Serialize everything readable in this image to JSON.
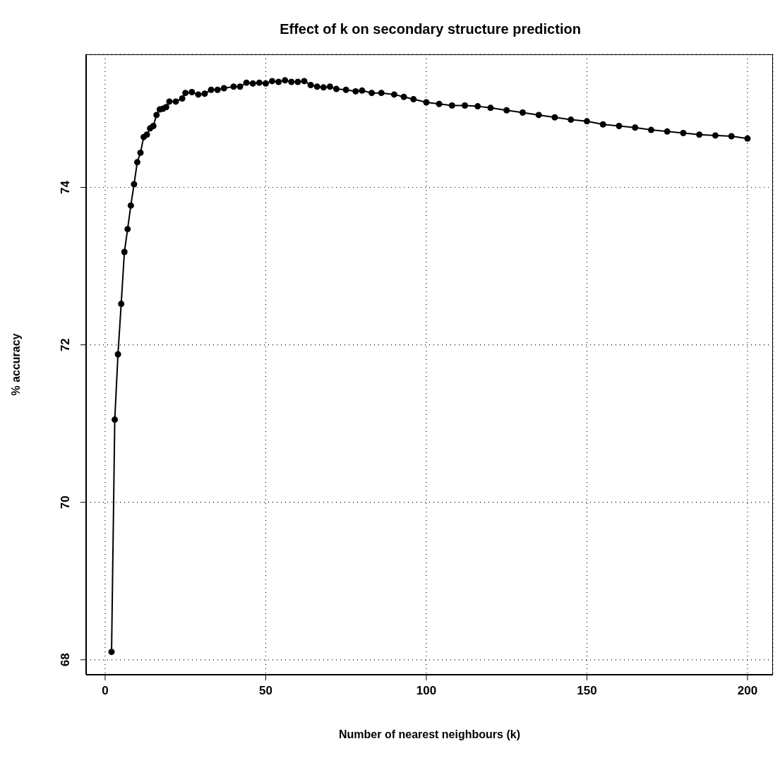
{
  "chart_data": {
    "type": "line",
    "title": "Effect of k on secondary structure prediction",
    "xlabel": "Number of nearest neighbours (k)",
    "ylabel": "% accuracy",
    "xlim": [
      -5.92,
      207.92
    ],
    "ylim": [
      67.81,
      75.69
    ],
    "xticks": [
      0,
      50,
      100,
      150,
      200
    ],
    "yticks": [
      68,
      70,
      72,
      74
    ],
    "grid": true,
    "legend": false,
    "marker": "circle",
    "line_style": "solid",
    "series": [
      {
        "color": "#000000",
        "x": [
          2,
          3,
          4,
          5,
          6,
          7,
          8,
          9,
          10,
          11,
          12,
          13,
          14,
          15,
          16,
          17,
          18,
          19,
          20,
          22,
          24,
          25,
          27,
          29,
          31,
          33,
          35,
          37,
          40,
          42,
          44,
          46,
          48,
          50,
          52,
          54,
          56,
          58,
          60,
          62,
          64,
          66,
          68,
          70,
          72,
          75,
          78,
          80,
          83,
          86,
          90,
          93,
          96,
          100,
          104,
          108,
          112,
          116,
          120,
          125,
          130,
          135,
          140,
          145,
          150,
          155,
          160,
          165,
          170,
          175,
          180,
          185,
          190,
          195,
          200
        ],
        "values": [
          68.1,
          71.05,
          71.88,
          72.52,
          73.18,
          73.47,
          73.77,
          74.04,
          74.32,
          74.44,
          74.64,
          74.67,
          74.75,
          74.78,
          74.92,
          74.99,
          75.0,
          75.02,
          75.09,
          75.09,
          75.13,
          75.2,
          75.21,
          75.18,
          75.19,
          75.24,
          75.24,
          75.26,
          75.28,
          75.28,
          75.33,
          75.32,
          75.33,
          75.32,
          75.35,
          75.34,
          75.36,
          75.34,
          75.34,
          75.35,
          75.3,
          75.28,
          75.27,
          75.28,
          75.25,
          75.24,
          75.22,
          75.23,
          75.2,
          75.2,
          75.18,
          75.15,
          75.12,
          75.08,
          75.06,
          75.04,
          75.04,
          75.03,
          75.01,
          74.98,
          74.95,
          74.92,
          74.89,
          74.86,
          74.84,
          74.8,
          74.78,
          74.76,
          74.73,
          74.71,
          74.69,
          74.67,
          74.66,
          74.65,
          74.62
        ]
      }
    ]
  }
}
